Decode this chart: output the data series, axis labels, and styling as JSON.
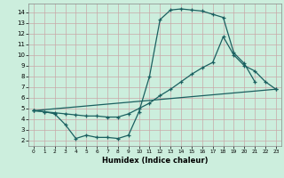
{
  "title": "",
  "xlabel": "Humidex (Indice chaleur)",
  "bg_color": "#cceedd",
  "grid_color": "#c8a8a8",
  "line_color": "#1a6060",
  "xlim": [
    -0.5,
    23.5
  ],
  "ylim": [
    1.5,
    14.8
  ],
  "xticks": [
    0,
    1,
    2,
    3,
    4,
    5,
    6,
    7,
    8,
    9,
    10,
    11,
    12,
    13,
    14,
    15,
    16,
    17,
    18,
    19,
    20,
    21,
    22,
    23
  ],
  "yticks": [
    2,
    3,
    4,
    5,
    6,
    7,
    8,
    9,
    10,
    11,
    12,
    13,
    14
  ],
  "line1_x": [
    0,
    1,
    2,
    3,
    4,
    5,
    6,
    7,
    8,
    9,
    10,
    11,
    12,
    13,
    14,
    15,
    16,
    17,
    18,
    19,
    20,
    21
  ],
  "line1_y": [
    4.8,
    4.7,
    4.5,
    3.5,
    2.2,
    2.5,
    2.3,
    2.3,
    2.2,
    2.5,
    4.7,
    8.0,
    13.3,
    14.2,
    14.3,
    14.2,
    14.1,
    13.8,
    13.5,
    10.2,
    9.2,
    7.5
  ],
  "line2_x": [
    0,
    1,
    2,
    3,
    4,
    5,
    6,
    7,
    8,
    9,
    10,
    11,
    12,
    13,
    14,
    15,
    16,
    17,
    18,
    19,
    20,
    21,
    22,
    23
  ],
  "line2_y": [
    4.8,
    4.7,
    4.6,
    4.5,
    4.4,
    4.3,
    4.3,
    4.2,
    4.2,
    4.5,
    5.0,
    5.5,
    6.2,
    6.8,
    7.5,
    8.2,
    8.8,
    9.3,
    11.7,
    10.0,
    9.0,
    8.5,
    7.5,
    6.8
  ],
  "line3_x": [
    0,
    23
  ],
  "line3_y": [
    4.8,
    6.8
  ]
}
